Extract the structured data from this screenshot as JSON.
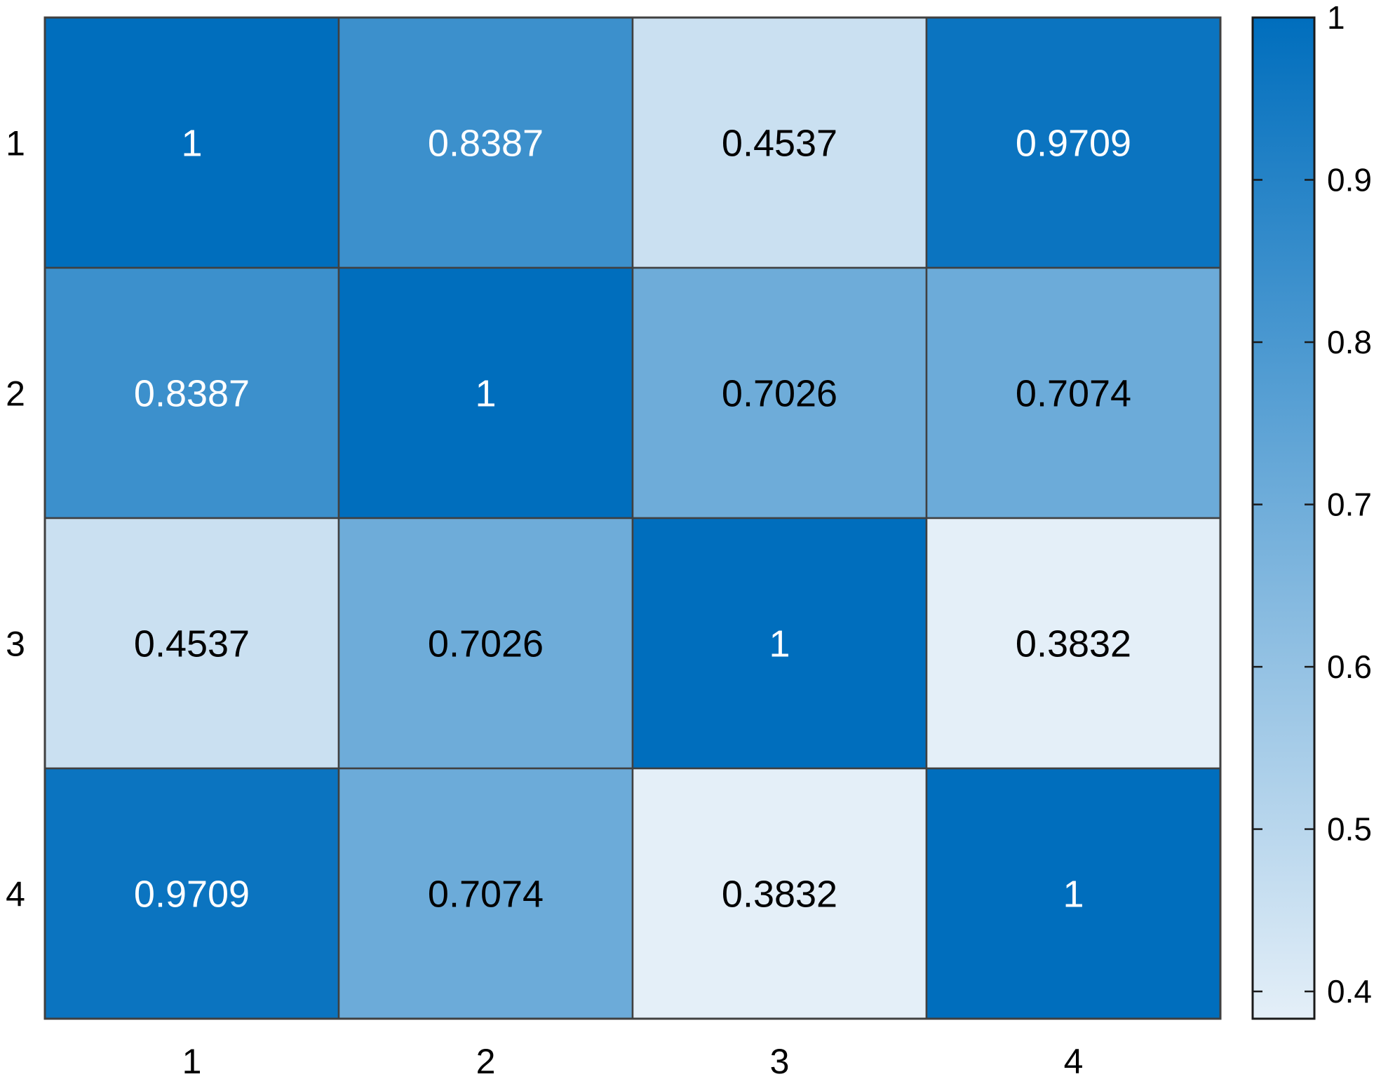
{
  "chart_data": {
    "type": "heatmap",
    "title": "",
    "xlabel": "",
    "ylabel": "",
    "x_categories": [
      "1",
      "2",
      "3",
      "4"
    ],
    "y_categories": [
      "1",
      "2",
      "3",
      "4"
    ],
    "values": [
      [
        1,
        0.8387,
        0.4537,
        0.9709
      ],
      [
        0.8387,
        1,
        0.7026,
        0.7074
      ],
      [
        0.4537,
        0.7026,
        1,
        0.3832
      ],
      [
        0.9709,
        0.7074,
        0.3832,
        1
      ]
    ],
    "value_labels": [
      [
        "1",
        "0.8387",
        "0.4537",
        "0.9709"
      ],
      [
        "0.8387",
        "1",
        "0.7026",
        "0.7074"
      ],
      [
        "0.4537",
        "0.7026",
        "1",
        "0.3832"
      ],
      [
        "0.9709",
        "0.7074",
        "0.3832",
        "1"
      ]
    ],
    "colorbar": {
      "range": [
        0.3832,
        1
      ],
      "ticks": [
        0.4,
        0.5,
        0.6,
        0.7,
        0.8,
        0.9,
        1
      ],
      "tick_labels": [
        "0.4",
        "0.5",
        "0.6",
        "0.7",
        "0.8",
        "0.9",
        "1"
      ],
      "low_color": "#e4eff8",
      "high_color": "#006ebd"
    },
    "cell_border_color": "#404040",
    "text_color_dark_cells": "#ffffff",
    "text_color_light_cells": "#000000",
    "grid": false,
    "legend": "colorbar-right"
  }
}
